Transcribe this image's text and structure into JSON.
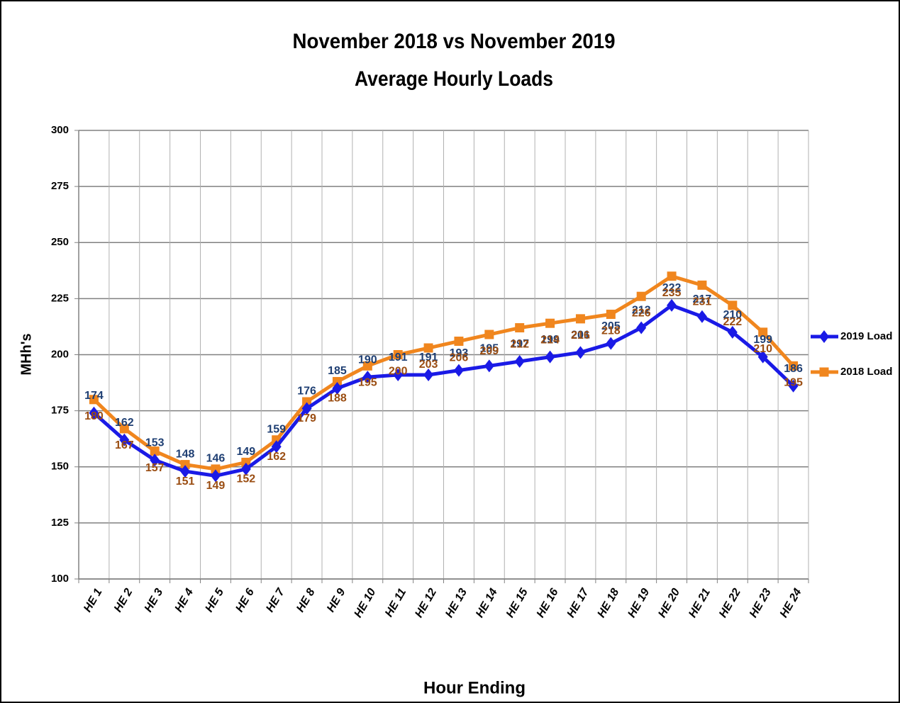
{
  "chart_data": {
    "type": "line",
    "title": "November 2018 vs November 2019",
    "subtitle": "Average Hourly Loads",
    "x_label": "Hour Ending",
    "y_label": "MHh's",
    "categories": [
      "HE 1",
      "HE 2",
      "HE 3",
      "HE 4",
      "HE 5",
      "HE 6",
      "HE 7",
      "HE 8",
      "HE 9",
      "HE 10",
      "HE 11",
      "HE 12",
      "HE 13",
      "HE 14",
      "HE 15",
      "HE 16",
      "HE 17",
      "HE 18",
      "HE 19",
      "HE 20",
      "HE 21",
      "HE 22",
      "HE 23",
      "HE 24"
    ],
    "series": [
      {
        "name": "2019 Load",
        "color": "#1a1ae6",
        "label_color": "#1f3f73",
        "marker": "diamond",
        "values": [
          174,
          162,
          153,
          148,
          146,
          149,
          159,
          176,
          185,
          190,
          191,
          191,
          193,
          195,
          197,
          199,
          201,
          205,
          212,
          222,
          217,
          210,
          199,
          186
        ]
      },
      {
        "name": "2018 Load",
        "color": "#f0861e",
        "label_color": "#9a4d12",
        "marker": "square",
        "values": [
          180,
          167,
          157,
          151,
          149,
          152,
          162,
          179,
          188,
          195,
          200,
          203,
          206,
          209,
          212,
          214,
          216,
          218,
          226,
          235,
          231,
          222,
          210,
          195
        ]
      }
    ],
    "ylim": [
      100,
      300
    ],
    "yticks": [
      100,
      125,
      150,
      175,
      200,
      225,
      250,
      275,
      300
    ],
    "grid": true
  }
}
